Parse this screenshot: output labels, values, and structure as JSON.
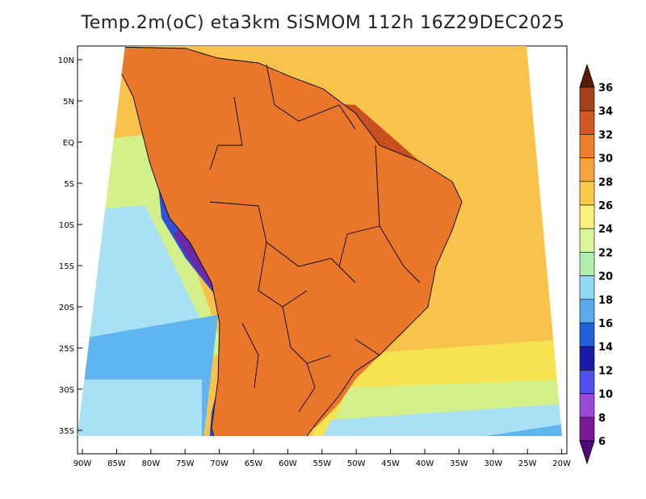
{
  "title": "Temp.2m(oC) eta3km SiSMOM 112h 16Z29DEC2025",
  "colors": {
    "ocean_warm": "#f9c24a",
    "ocean_mid": "#f7e24f",
    "ocean_cool": "#d4f08a",
    "ocean_cold": "#a8e0f5",
    "ocean_colder": "#5fb5f0",
    "land_hot": "#e8772a",
    "land_hotter": "#c9501e",
    "land_hottest": "#8a3517",
    "andes_cold": "#3050d8",
    "andes_colder": "#6a2aa8",
    "border": "#000000"
  },
  "axes": {
    "lat_labels": [
      "10N",
      "5N",
      "EQ",
      "5S",
      "10S",
      "15S",
      "20S",
      "25S",
      "30S",
      "35S"
    ],
    "lon_labels": [
      "90W",
      "85W",
      "80W",
      "75W",
      "70W",
      "65W",
      "60W",
      "55W",
      "50W",
      "45W",
      "40W",
      "35W",
      "30W",
      "25W",
      "20W"
    ]
  },
  "colorbar": {
    "labels": [
      "36",
      "34",
      "32",
      "30",
      "28",
      "26",
      "24",
      "22",
      "20",
      "18",
      "16",
      "14",
      "12",
      "10",
      "8",
      "6"
    ],
    "colors": [
      "#7a2a10",
      "#a8401a",
      "#d05a22",
      "#ed7e2c",
      "#f5a33a",
      "#f7c84a",
      "#f8f07a",
      "#d8f59a",
      "#b0eeb0",
      "#90d8f5",
      "#5aaaf0",
      "#2060d8",
      "#1a1aa8",
      "#5050f0",
      "#9a4ad8",
      "#7a1a98"
    ],
    "top_color": "#5a1a08",
    "bottom_color": "#500a80"
  }
}
